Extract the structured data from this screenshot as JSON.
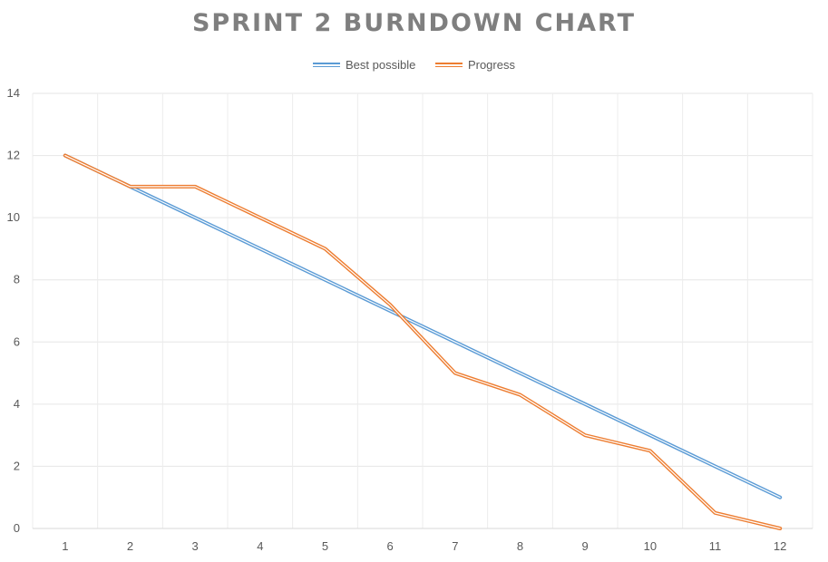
{
  "chart_data": {
    "type": "line",
    "title": "SPRINT 2 BURNDOWN CHART",
    "xlabel": "",
    "ylabel": "",
    "categories": [
      "1",
      "2",
      "3",
      "4",
      "5",
      "6",
      "7",
      "8",
      "9",
      "10",
      "11",
      "12"
    ],
    "ylim": [
      0,
      14
    ],
    "yticks": [
      "0",
      "2",
      "4",
      "6",
      "8",
      "10",
      "12",
      "14"
    ],
    "grid": true,
    "legend_position": "top",
    "series": [
      {
        "name": "Best possible",
        "color": "#5b9bd5",
        "values": [
          12,
          11,
          10,
          9,
          8,
          7,
          6,
          5,
          4,
          3,
          2,
          1
        ]
      },
      {
        "name": "Progress",
        "color": "#ed7d31",
        "values": [
          12,
          11,
          11,
          10,
          9,
          7.2,
          5,
          4.3,
          3,
          2.5,
          0.5,
          0
        ]
      }
    ]
  }
}
